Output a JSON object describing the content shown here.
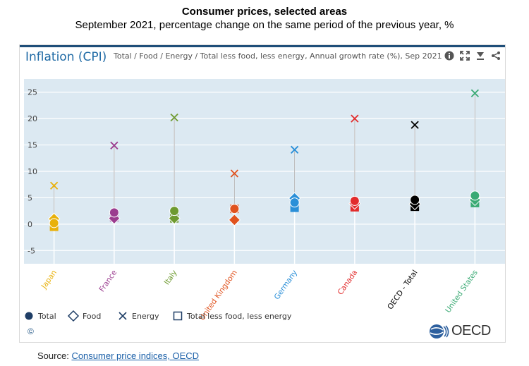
{
  "header": {
    "title": "Consumer prices, selected areas",
    "subtitle": "September 2021, percentage change on the same period of the previous year, %"
  },
  "widget": {
    "heading": "Inflation (CPI)",
    "description": "Total / Food / Energy / Total less food, less energy, Annual growth rate (%), Sep 2021",
    "copyright": "©",
    "logo_text": "OECD"
  },
  "tools": [
    "info-icon",
    "fullscreen-icon",
    "download-icon",
    "share-icon"
  ],
  "source": {
    "label": "Source:",
    "link_text": "Consumer price indices, OECD"
  },
  "chart_data": {
    "type": "scatter",
    "title": "Inflation (CPI)",
    "ylabel": "",
    "xlabel": "",
    "ylim": [
      -7.5,
      27.5
    ],
    "yticks": [
      -5,
      0,
      5,
      10,
      15,
      20,
      25
    ],
    "grid": true,
    "legend_position": "bottom-left",
    "categories": [
      "Japan",
      "France",
      "Italy",
      "United Kingdom",
      "Germany",
      "Canada",
      "OECD - Total",
      "United States"
    ],
    "category_colors": [
      "#e8b10b",
      "#9b3d8f",
      "#6e9a2f",
      "#e0521e",
      "#2a8fd8",
      "#e22c2c",
      "#000000",
      "#3aaa74"
    ],
    "series": [
      {
        "name": "Total",
        "marker": "circle",
        "values": [
          0.2,
          2.2,
          2.5,
          2.9,
          4.1,
          4.4,
          4.6,
          5.4
        ]
      },
      {
        "name": "Food",
        "marker": "diamond",
        "values": [
          1.0,
          1.1,
          1.1,
          0.8,
          4.9,
          3.9,
          3.8,
          4.6
        ]
      },
      {
        "name": "Energy",
        "marker": "x",
        "values": [
          7.3,
          14.9,
          20.2,
          9.6,
          14.1,
          20.0,
          18.8,
          24.8
        ]
      },
      {
        "name": "Total less food, less energy",
        "marker": "square",
        "values": [
          -0.5,
          1.3,
          1.1,
          2.9,
          3.1,
          3.2,
          3.3,
          4.0
        ]
      }
    ]
  }
}
